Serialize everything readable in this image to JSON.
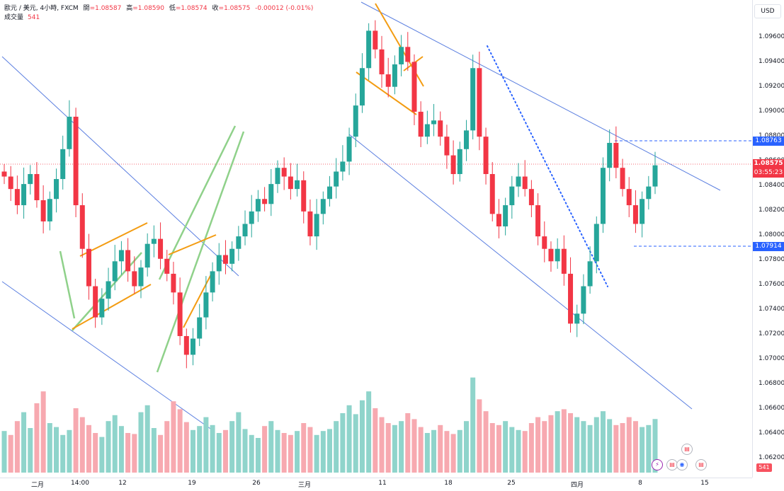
{
  "header": {
    "symbol": "歐元 / 美元, 4小時, FXCM",
    "open_label": "開",
    "open": "=1.08587",
    "high_label": "高",
    "high": "=1.08590",
    "low_label": "低",
    "low": "=1.08574",
    "close_label": "收",
    "close": "=1.08575",
    "change": "-0.00012 (-0.01%)",
    "volume_label": "成交量",
    "volume": "541"
  },
  "currency": "USD",
  "price_ticks": [
    "1.09600",
    "1.09400",
    "1.09200",
    "1.09000",
    "1.08800",
    "1.08600",
    "1.08400",
    "1.08200",
    "1.08000",
    "1.07800",
    "1.07600",
    "1.07400",
    "1.07200",
    "1.07000",
    "1.06800",
    "1.06600",
    "1.06400",
    "1.06200"
  ],
  "badges": {
    "level_high": "1.08763",
    "last_price": "1.08575",
    "countdown": "03:55:23",
    "level_low": "1.07914",
    "volume_last": "541"
  },
  "time_ticks": [
    "二月",
    "14:00",
    "12",
    "19",
    "26",
    "三月",
    "11",
    "18",
    "25",
    "四月",
    "8",
    "15"
  ],
  "colors": {
    "up": "#26a69a",
    "down": "#f23645",
    "trend": "#5b7fe0",
    "orange": "#f39c12",
    "green": "#8fd18a",
    "dots": "#2962ff"
  },
  "chart_data": {
    "type": "candlestick",
    "ylim": [
      1.0615,
      1.098
    ],
    "ohlc_close_sample": [
      1.0848,
      1.0838,
      1.0825,
      1.0842,
      1.085,
      1.0829,
      1.0812,
      1.083,
      1.0846,
      1.087,
      1.0896,
      1.0825,
      1.079,
      1.076,
      1.0735,
      1.075,
      1.0764,
      1.078,
      1.0789,
      1.0772,
      1.076,
      1.0775,
      1.0794,
      1.0798,
      1.0782,
      1.077,
      1.0755,
      1.072,
      1.0705,
      1.0718,
      1.0735,
      1.0755,
      1.0772,
      1.0785,
      1.0778,
      1.079,
      1.08,
      1.081,
      1.082,
      1.083,
      1.0826,
      1.0842,
      1.0855,
      1.0848,
      1.0838,
      1.0845,
      1.082,
      1.08,
      1.0818,
      1.083,
      1.084,
      1.0852,
      1.086,
      1.088,
      1.0905,
      1.0935,
      1.0965,
      1.095,
      1.093,
      1.092,
      1.0938,
      1.0952,
      1.094,
      1.09,
      1.088,
      1.089,
      1.0893,
      1.088,
      1.0865,
      1.085,
      1.087,
      1.0885,
      1.0935,
      1.088,
      1.085,
      1.0818,
      1.0808,
      1.0825,
      1.084,
      1.0848,
      1.0838,
      1.0825,
      1.08,
      1.079,
      1.078,
      1.079,
      1.077,
      1.073,
      1.0738,
      1.076,
      1.078,
      1.081,
      1.0855,
      1.0875,
      1.0855,
      1.0838,
      1.0825,
      1.081,
      1.083,
      1.084,
      1.0857
    ],
    "volume_sample": [
      420,
      380,
      520,
      610,
      450,
      700,
      820,
      500,
      460,
      380,
      430,
      650,
      560,
      480,
      400,
      360,
      520,
      580,
      470,
      400,
      390,
      610,
      680,
      450,
      380,
      520,
      720,
      640,
      510,
      430,
      470,
      560,
      480,
      400,
      430,
      520,
      610,
      440,
      380,
      350,
      470,
      520,
      430,
      400,
      380,
      420,
      500,
      460,
      380,
      420,
      440,
      520,
      600,
      680,
      590,
      730,
      820,
      650,
      560,
      500,
      480,
      520,
      600,
      540,
      460,
      400,
      430,
      480,
      420,
      390,
      430,
      520,
      960,
      740,
      620,
      500,
      480,
      520,
      460,
      430,
      420,
      500,
      560,
      520,
      580,
      620,
      640,
      600,
      560,
      520,
      480,
      560,
      620,
      540,
      480,
      500,
      560,
      520,
      460,
      480,
      541
    ],
    "volume_max": 1000
  }
}
